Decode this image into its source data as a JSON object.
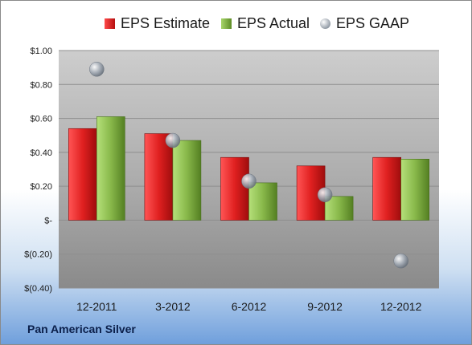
{
  "chart_data": {
    "type": "bar",
    "title": "",
    "xlabel": "",
    "ylabel": "",
    "categories": [
      "12-2011",
      "3-2012",
      "6-2012",
      "9-2012",
      "12-2012"
    ],
    "series": [
      {
        "name": "EPS Estimate",
        "kind": "bar",
        "color": "#d11f1f",
        "values": [
          0.54,
          0.51,
          0.37,
          0.32,
          0.37
        ]
      },
      {
        "name": "EPS Actual",
        "kind": "bar",
        "color": "#7aa83a",
        "values": [
          0.61,
          0.47,
          0.22,
          0.14,
          0.36
        ]
      },
      {
        "name": "EPS GAAP",
        "kind": "marker",
        "color": "#9aa3ad",
        "values": [
          0.89,
          0.47,
          0.23,
          0.15,
          -0.24
        ]
      }
    ],
    "ylim": [
      -0.4,
      1.0
    ],
    "yticks": [
      -0.4,
      -0.2,
      0,
      0.2,
      0.4,
      0.6,
      0.8,
      1.0
    ],
    "ytick_labels": [
      "$(0.40)",
      "$(0.20)",
      "$-",
      "$0.20",
      "$0.40",
      "$0.60",
      "$0.80",
      "$1.00"
    ],
    "grid": true,
    "legend": "top"
  },
  "legend": {
    "estimate": "EPS Estimate",
    "actual": "EPS Actual",
    "gaap": "EPS GAAP"
  },
  "footer": {
    "company": "Pan American Silver"
  }
}
